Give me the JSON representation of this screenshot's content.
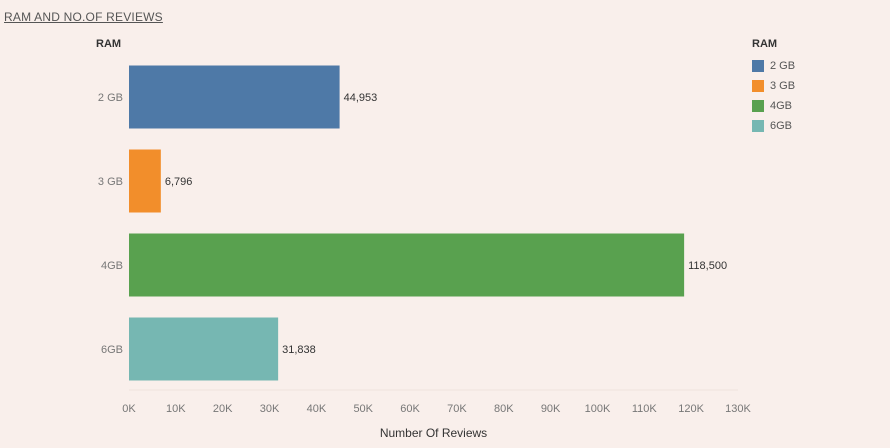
{
  "title": "RAM AND NO.OF REVIEWS",
  "row_header": "RAM",
  "legend": {
    "title": "RAM",
    "items": [
      {
        "label": "2 GB",
        "color": "#4e79a7"
      },
      {
        "label": "3 GB",
        "color": "#f28e2b"
      },
      {
        "label": "4GB",
        "color": "#59a14f"
      },
      {
        "label": "6GB",
        "color": "#76b7b2"
      }
    ]
  },
  "chart_data": {
    "type": "bar",
    "orientation": "horizontal",
    "categories": [
      "2 GB",
      "3 GB",
      "4GB",
      "6GB"
    ],
    "values": [
      44953,
      6796,
      118500,
      31838
    ],
    "value_labels": [
      "44,953",
      "6,796",
      "118,500",
      "31,838"
    ],
    "colors": [
      "#4e79a7",
      "#f28e2b",
      "#59a14f",
      "#76b7b2"
    ],
    "title": "RAM AND NO.OF REVIEWS",
    "xlabel": "Number Of Reviews",
    "ylabel": "RAM",
    "xlim": [
      0,
      130000
    ],
    "xticks": [
      0,
      10000,
      20000,
      30000,
      40000,
      50000,
      60000,
      70000,
      80000,
      90000,
      100000,
      110000,
      120000,
      130000
    ],
    "xtick_labels": [
      "0K",
      "10K",
      "20K",
      "30K",
      "40K",
      "50K",
      "60K",
      "70K",
      "80K",
      "90K",
      "100K",
      "110K",
      "120K",
      "130K"
    ],
    "grid": false,
    "legend_position": "top-right"
  }
}
